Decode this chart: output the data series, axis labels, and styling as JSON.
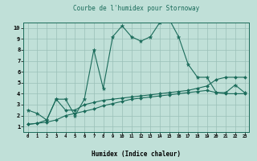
{
  "title": "Courbe de l'humidex pour Stornoway",
  "xlabel": "Humidex (Indice chaleur)",
  "bg_color": "#c0e0d8",
  "line_color": "#1a6b5a",
  "grid_color": "#9abfb8",
  "xlim": [
    -0.5,
    23.5
  ],
  "ylim": [
    0.5,
    10.5
  ],
  "xticks": [
    0,
    1,
    2,
    3,
    4,
    5,
    6,
    7,
    8,
    9,
    10,
    11,
    12,
    13,
    14,
    15,
    16,
    17,
    18,
    19,
    20,
    21,
    22,
    23
  ],
  "yticks": [
    1,
    2,
    3,
    4,
    5,
    6,
    7,
    8,
    9,
    10
  ],
  "curve1_x": [
    0,
    1,
    2,
    3,
    4,
    5,
    6,
    7,
    8,
    9,
    10,
    11,
    12,
    13,
    14,
    15,
    16,
    17,
    18,
    19,
    20,
    21,
    22,
    23
  ],
  "curve1_y": [
    2.5,
    2.2,
    1.6,
    3.5,
    3.5,
    2.0,
    3.5,
    8.0,
    4.5,
    9.2,
    10.2,
    9.2,
    8.8,
    9.2,
    10.5,
    10.8,
    9.2,
    6.7,
    5.5,
    5.5,
    4.1,
    4.1,
    4.8,
    4.1
  ],
  "curve2_x": [
    0,
    1,
    2,
    3,
    4,
    5,
    6,
    7,
    8,
    9,
    10,
    11,
    12,
    13,
    14,
    15,
    16,
    17,
    18,
    19,
    20,
    21,
    22,
    23
  ],
  "curve2_y": [
    1.2,
    1.3,
    1.4,
    1.6,
    2.0,
    2.2,
    2.4,
    2.6,
    2.9,
    3.1,
    3.3,
    3.5,
    3.6,
    3.7,
    3.8,
    3.9,
    4.0,
    4.1,
    4.2,
    4.3,
    4.1,
    4.0,
    4.0,
    4.0
  ],
  "curve3_x": [
    0,
    1,
    2,
    3,
    4,
    5,
    6,
    7,
    8,
    9,
    10,
    11,
    12,
    13,
    14,
    15,
    16,
    17,
    18,
    19,
    20,
    21,
    22,
    23
  ],
  "curve3_y": [
    1.2,
    1.3,
    1.6,
    3.5,
    2.5,
    2.5,
    3.0,
    3.2,
    3.4,
    3.5,
    3.6,
    3.7,
    3.8,
    3.9,
    4.0,
    4.1,
    4.2,
    4.3,
    4.5,
    4.7,
    5.3,
    5.5,
    5.5,
    5.5
  ]
}
